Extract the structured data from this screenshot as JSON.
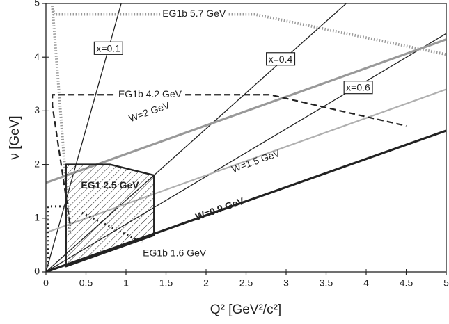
{
  "chart_data": {
    "type": "line",
    "xlabel": "Q² [GeV²/c²]",
    "ylabel": "ν [GeV]",
    "xlim": [
      0,
      5
    ],
    "ylim": [
      0,
      5
    ],
    "xticks": [
      0,
      0.5,
      1,
      1.5,
      2,
      2.5,
      3,
      3.5,
      4,
      4.5,
      5
    ],
    "yticks": [
      0,
      1,
      2,
      3,
      4,
      5
    ],
    "series": [
      {
        "name": "x=0.1",
        "color": "#222222",
        "style": "solid",
        "x": [
          0,
          0.94
        ],
        "values": [
          0,
          5
        ]
      },
      {
        "name": "x=0.4",
        "color": "#222222",
        "style": "solid",
        "x": [
          0,
          3.75
        ],
        "values": [
          0,
          5
        ]
      },
      {
        "name": "x=0.6",
        "color": "#222222",
        "style": "solid",
        "x": [
          0,
          5
        ],
        "values": [
          0,
          4.44
        ]
      },
      {
        "name": "W=2 GeV",
        "color": "#999999",
        "style": "thick",
        "x": [
          0,
          5
        ],
        "values": [
          1.66,
          4.33
        ]
      },
      {
        "name": "W=1.5 GeV",
        "color": "#b0b0b0",
        "style": "medium",
        "x": [
          0,
          5
        ],
        "values": [
          0.73,
          3.4
        ]
      },
      {
        "name": "W=0.9 GeV",
        "color": "#222222",
        "style": "thick",
        "x": [
          0,
          5
        ],
        "values": [
          0,
          2.63
        ]
      },
      {
        "name": "EG1b 5.7 GeV",
        "color": "#9a9a9a",
        "style": "dotted-thick",
        "x": [
          0.3,
          0.08,
          0.1,
          2.6,
          5
        ],
        "values": [
          0.7,
          4.95,
          4.8,
          4.8,
          4.05
        ]
      },
      {
        "name": "EG1b 4.2 GeV",
        "color": "#222222",
        "style": "dashed",
        "x": [
          0.3,
          0.08,
          0.08,
          2.8,
          4.5
        ],
        "values": [
          0.9,
          3.1,
          3.3,
          3.3,
          2.72
        ]
      },
      {
        "name": "EG1b 1.6 GeV",
        "color": "#222222",
        "style": "dotted",
        "x": [
          0.03,
          0.03,
          0.22,
          0.3,
          0.45,
          1.2
        ],
        "values": [
          0.1,
          1.22,
          1.22,
          null,
          1.1,
          0.55
        ]
      },
      {
        "name": "EG1 2.5 GeV",
        "color": "#222222",
        "style": "hatched",
        "x": [
          0.25,
          0.25,
          0.8,
          1.35,
          1.35
        ],
        "values": [
          0.1,
          2.0,
          2.0,
          1.8,
          0.68
        ]
      }
    ]
  }
}
